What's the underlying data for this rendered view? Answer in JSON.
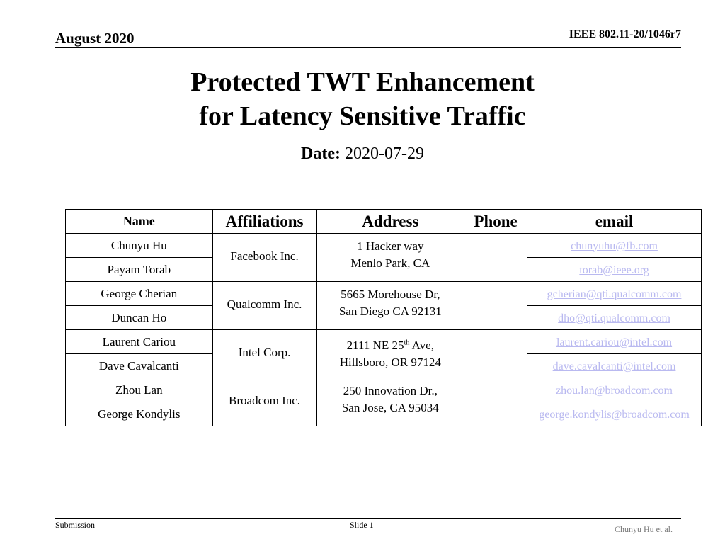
{
  "header": {
    "date": "August 2020",
    "doc_id": "IEEE 802.11-20/1046r7"
  },
  "title_lines": [
    "Protected TWT Enhancement",
    "for Latency Sensitive Traffic"
  ],
  "date_label": "Date:",
  "date_value": "2020-07-29",
  "table": {
    "headers": [
      "Name",
      "Affiliations",
      "Address",
      "Phone",
      "email"
    ],
    "groups": [
      {
        "affiliation": "Facebook Inc.",
        "address": [
          "1 Hacker way",
          "Menlo Park, CA"
        ],
        "people": [
          {
            "name": "Chunyu Hu",
            "email": "chunyuhu@fb.com"
          },
          {
            "name": "Payam Torab",
            "email": "torab@ieee.org"
          }
        ]
      },
      {
        "affiliation": "Qualcomm Inc.",
        "address": [
          "5665 Morehouse Dr,",
          "San Diego CA 92131"
        ],
        "people": [
          {
            "name": "George Cherian",
            "email": "gcherian@qti.qualcomm.com"
          },
          {
            "name": "Duncan Ho",
            "email": "dho@qti.qualcomm.com"
          }
        ]
      },
      {
        "affiliation": "Intel Corp.",
        "address": [
          "2111 NE 25",
          "th",
          " Ave,",
          "Hillsboro, OR 97124"
        ],
        "people": [
          {
            "name": "Laurent Cariou",
            "email": "laurent.cariou@intel.com"
          },
          {
            "name": "Dave Cavalcanti",
            "email": "dave.cavalcanti@intel.com"
          }
        ]
      },
      {
        "affiliation": "Broadcom Inc.",
        "address": [
          "250 Innovation Dr.,",
          "San Jose, CA 95034"
        ],
        "people": [
          {
            "name": "Zhou Lan",
            "email": "zhou.lan@broadcom.com"
          },
          {
            "name": "George Kondylis",
            "email": "george.kondylis@broadcom.com"
          }
        ]
      }
    ]
  },
  "footer": {
    "left": "Submission",
    "center": "Slide 1",
    "right": "Chunyu Hu et al."
  }
}
